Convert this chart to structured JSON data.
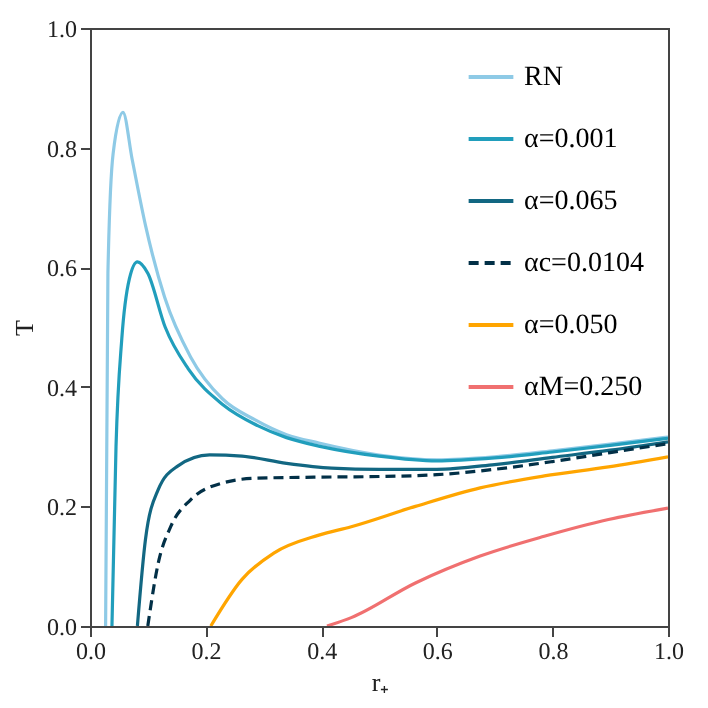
{
  "chart_data": {
    "type": "line",
    "xlabel": "r₊",
    "ylabel": "T",
    "xlim": [
      0,
      1
    ],
    "ylim": [
      0,
      1
    ],
    "xticks": [
      {
        "value": 0,
        "label": "0.0"
      },
      {
        "value": 0.2,
        "label": "0.2"
      },
      {
        "value": 0.4,
        "label": "0.4"
      },
      {
        "value": 0.6,
        "label": "0.6"
      },
      {
        "value": 0.8,
        "label": "0.8"
      },
      {
        "value": 1,
        "label": "1.0"
      }
    ],
    "yticks": [
      {
        "value": 0,
        "label": "0.0"
      },
      {
        "value": 0.2,
        "label": "0.2"
      },
      {
        "value": 0.4,
        "label": "0.4"
      },
      {
        "value": 0.6,
        "label": "0.6"
      },
      {
        "value": 0.8,
        "label": "0.8"
      },
      {
        "value": 1,
        "label": "1.0"
      }
    ],
    "grid": false,
    "legend": "top right",
    "marker": "none",
    "series": [
      {
        "name": "RN",
        "color": "#8ecae6",
        "line_style": "solid",
        "x": [
          0.027,
          0.031,
          0.04,
          0.057,
          0.073,
          0.096,
          0.129,
          0.174,
          0.229,
          0.285,
          0.34,
          0.396,
          0.5,
          0.6,
          0.7,
          0.8,
          0.9,
          1.0
        ],
        "values": [
          0,
          0.59,
          0.79,
          0.859,
          0.78,
          0.67,
          0.55,
          0.45,
          0.38,
          0.345,
          0.32,
          0.306,
          0.286,
          0.278,
          0.283,
          0.293,
          0.304,
          0.316
        ]
      },
      {
        "name": "α=0.001",
        "color": "#219ebc",
        "line_style": "solid",
        "x": [
          0.038,
          0.045,
          0.055,
          0.068,
          0.082,
          0.1,
          0.13,
          0.17,
          0.23,
          0.29,
          0.34,
          0.4,
          0.5,
          0.6,
          0.7,
          0.8,
          0.9,
          1.0
        ],
        "values": [
          0,
          0.3,
          0.48,
          0.58,
          0.609,
          0.59,
          0.5,
          0.43,
          0.37,
          0.335,
          0.315,
          0.3,
          0.284,
          0.276,
          0.281,
          0.291,
          0.302,
          0.314
        ]
      },
      {
        "name": "α=0.065",
        "color": "#126782",
        "line_style": "solid",
        "x": [
          0.082,
          0.096,
          0.118,
          0.151,
          0.207,
          0.263,
          0.34,
          0.418,
          0.5,
          0.6,
          0.7,
          0.8,
          0.9,
          1.0
        ],
        "values": [
          0,
          0.145,
          0.228,
          0.267,
          0.286,
          0.284,
          0.272,
          0.264,
          0.262,
          0.262,
          0.27,
          0.282,
          0.294,
          0.308
        ]
      },
      {
        "name": "αc=0.0104",
        "color": "#023047",
        "line_style": "dashed",
        "x": [
          0.1,
          0.118,
          0.14,
          0.174,
          0.229,
          0.285,
          0.4,
          0.5,
          0.6,
          0.7,
          0.8,
          0.9,
          1.0
        ],
        "values": [
          0,
          0.105,
          0.167,
          0.211,
          0.239,
          0.247,
          0.249,
          0.25,
          0.253,
          0.262,
          0.275,
          0.29,
          0.305
        ]
      },
      {
        "name": "α=0.050",
        "color": "#ffa500",
        "line_style": "solid",
        "x": [
          0.209,
          0.263,
          0.318,
          0.396,
          0.452,
          0.563,
          0.675,
          0.786,
          0.897,
          1.0
        ],
        "values": [
          0,
          0.078,
          0.122,
          0.152,
          0.166,
          0.2,
          0.231,
          0.251,
          0.266,
          0.283
        ]
      },
      {
        "name": "αM=0.250",
        "color": "#f07070",
        "line_style": "solid",
        "x": [
          0.41,
          0.452,
          0.563,
          0.675,
          0.786,
          0.897,
          1.0
        ],
        "values": [
          0,
          0.014,
          0.072,
          0.117,
          0.15,
          0.178,
          0.197
        ]
      }
    ]
  }
}
